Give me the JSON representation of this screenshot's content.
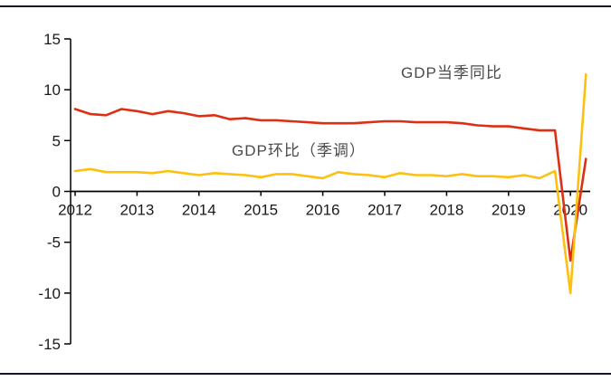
{
  "chart_data": {
    "type": "line",
    "title": "",
    "xlabel": "",
    "ylabel": "",
    "ylim": [
      -15,
      15
    ],
    "y_ticks": [
      15,
      10,
      5,
      0,
      -5,
      -10,
      -15
    ],
    "x_tick_labels": [
      "2012",
      "2013",
      "2014",
      "2015",
      "2016",
      "2017",
      "2018",
      "2019",
      "2020"
    ],
    "x_quarters": [
      "2012Q1",
      "2012Q2",
      "2012Q3",
      "2012Q4",
      "2013Q1",
      "2013Q2",
      "2013Q3",
      "2013Q4",
      "2014Q1",
      "2014Q2",
      "2014Q3",
      "2014Q4",
      "2015Q1",
      "2015Q2",
      "2015Q3",
      "2015Q4",
      "2016Q1",
      "2016Q2",
      "2016Q3",
      "2016Q4",
      "2017Q1",
      "2017Q2",
      "2017Q3",
      "2017Q4",
      "2018Q1",
      "2018Q2",
      "2018Q3",
      "2018Q4",
      "2019Q1",
      "2019Q2",
      "2019Q3",
      "2019Q4",
      "2020Q1",
      "2020Q2"
    ],
    "grid": false,
    "legend_position": "inline-annotations",
    "series": [
      {
        "name": "GDP当季同比",
        "color": "#dd2f13",
        "values": [
          8.1,
          7.6,
          7.5,
          8.1,
          7.9,
          7.6,
          7.9,
          7.7,
          7.4,
          7.5,
          7.1,
          7.2,
          7.0,
          7.0,
          6.9,
          6.8,
          6.7,
          6.7,
          6.7,
          6.8,
          6.9,
          6.9,
          6.8,
          6.8,
          6.8,
          6.7,
          6.5,
          6.4,
          6.4,
          6.2,
          6.0,
          6.0,
          -6.8,
          3.2
        ]
      },
      {
        "name": "GDP环比（季调）",
        "color": "#fcc010",
        "values": [
          2.0,
          2.2,
          1.9,
          1.9,
          1.9,
          1.8,
          2.0,
          1.8,
          1.6,
          1.8,
          1.7,
          1.6,
          1.4,
          1.7,
          1.7,
          1.5,
          1.3,
          1.9,
          1.7,
          1.6,
          1.4,
          1.8,
          1.6,
          1.6,
          1.5,
          1.7,
          1.5,
          1.5,
          1.4,
          1.6,
          1.3,
          2.0,
          -10.0,
          11.5
        ]
      }
    ],
    "annotations": [
      {
        "text": "GDP当季同比"
      },
      {
        "text": "GDP环比（季调）"
      }
    ]
  },
  "colors": {
    "axis": "#000000",
    "tick_text": "#1a1a1a",
    "separator": "#14142e",
    "annotation_text": "#4a4a4a"
  }
}
